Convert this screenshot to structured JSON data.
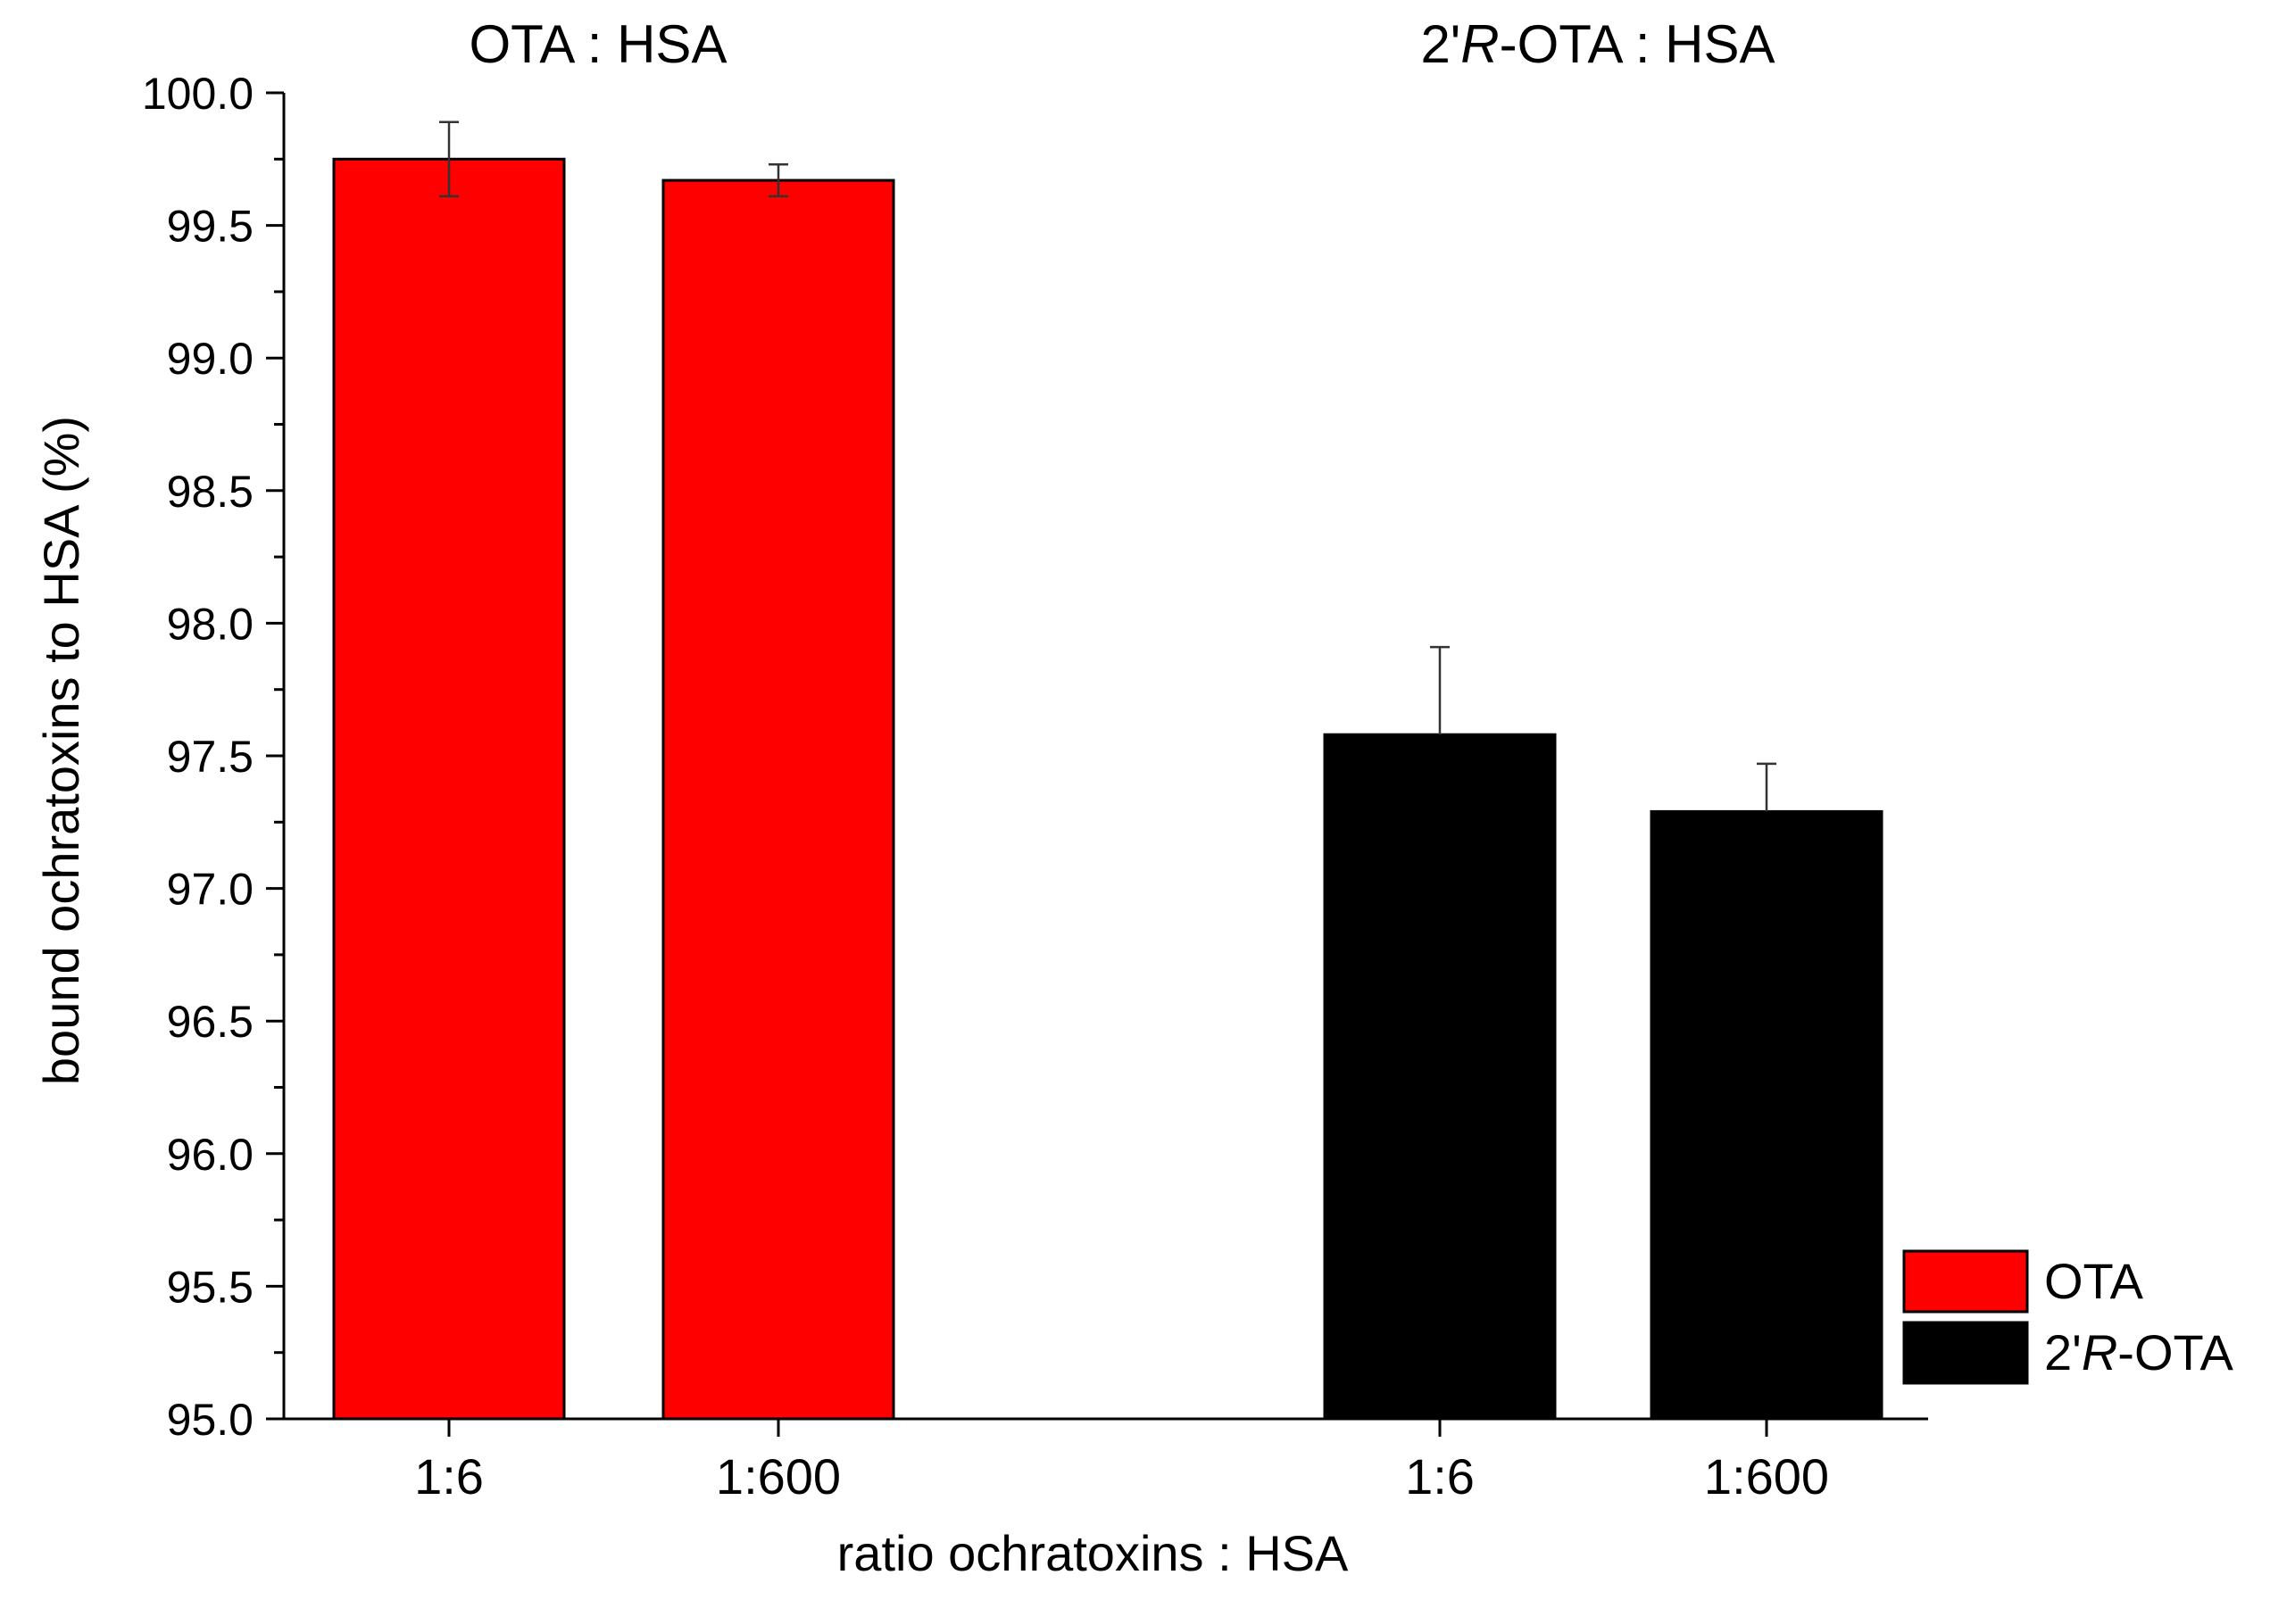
{
  "chart_data": {
    "type": "bar",
    "group_titles": [
      {
        "prefix": "OTA : HSA",
        "italic": "",
        "suffix": ""
      },
      {
        "prefix": "2'",
        "italic": "R",
        "suffix": "-OTA : HSA"
      }
    ],
    "categories": [
      "1:6",
      "1:600",
      "1:6",
      "1:600"
    ],
    "xlabel": "ratio ochratoxins : HSA",
    "ylabel": "bound ochratoxins to HSA (%)",
    "ylim": [
      95.0,
      100.0
    ],
    "yticks": [
      "95.0",
      "95.5",
      "96.0",
      "96.5",
      "97.0",
      "97.5",
      "98.0",
      "98.5",
      "99.0",
      "99.5",
      "100.0"
    ],
    "series": [
      {
        "name": "OTA",
        "legend_prefix": "OTA",
        "legend_italic": "",
        "legend_suffix": "",
        "color": "#ff0000",
        "values": [
          99.75,
          99.67,
          null,
          null
        ],
        "errors_up": [
          0.14,
          0.06,
          null,
          null
        ],
        "errors_down": [
          0.14,
          0.06,
          null,
          null
        ]
      },
      {
        "name": "2'R-OTA",
        "legend_prefix": "2'",
        "legend_italic": "R",
        "legend_suffix": "-OTA",
        "color": "#000000",
        "values": [
          null,
          null,
          97.58,
          97.29
        ],
        "errors_up": [
          null,
          null,
          0.33,
          0.18
        ],
        "errors_down": [
          null,
          null,
          0,
          0
        ]
      }
    ],
    "legend_position": "bottom-right",
    "grid": false
  }
}
